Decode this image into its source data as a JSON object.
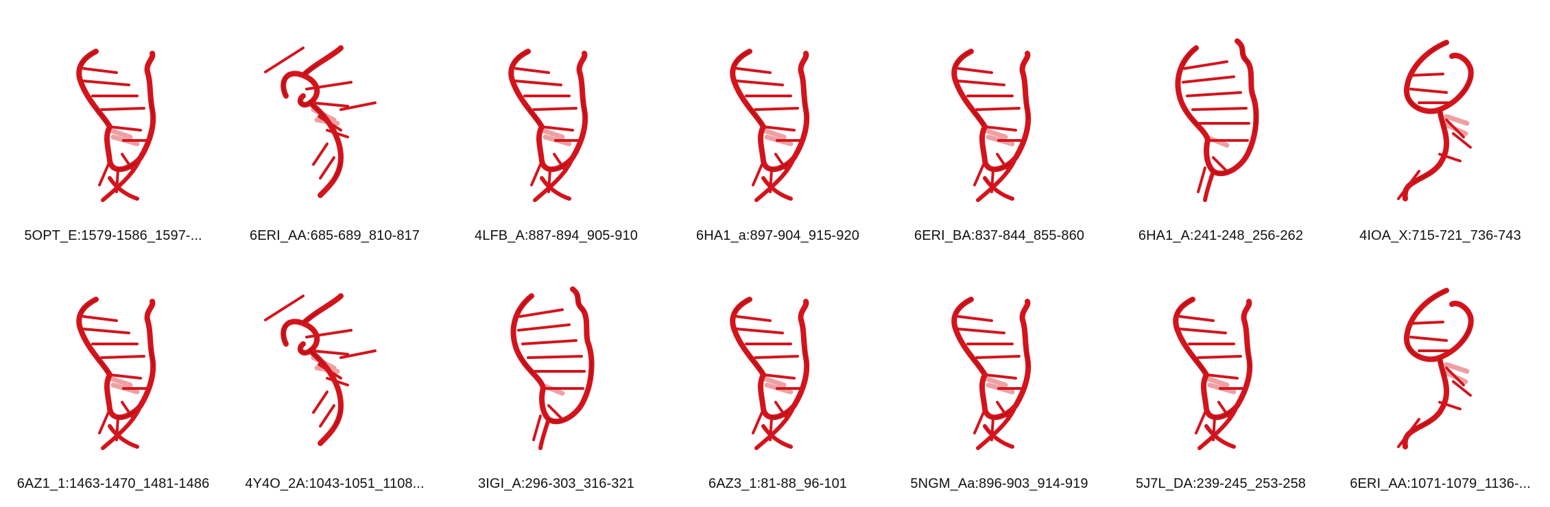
{
  "colors": {
    "strand": "#d3141c",
    "strand_dark": "#8e0c10",
    "strand_light": "#eea0a3",
    "caption_text": "#111111"
  },
  "structures": [
    {
      "label": "5OPT_E:1579-1586_1597-...",
      "variant": "a"
    },
    {
      "label": "6ERI_AA:685-689_810-817",
      "variant": "loop"
    },
    {
      "label": "4LFB_A:887-894_905-910",
      "variant": "a"
    },
    {
      "label": "6HA1_a:897-904_915-920",
      "variant": "a"
    },
    {
      "label": "6ERI_BA:837-844_855-860",
      "variant": "a"
    },
    {
      "label": "6HA1_A:241-248_256-262",
      "variant": "b"
    },
    {
      "label": "4IOA_X:715-721_736-743",
      "variant": "c"
    },
    {
      "label": "6AZ1_1:1463-1470_1481-1486",
      "variant": "a"
    },
    {
      "label": "4Y4O_2A:1043-1051_1108...",
      "variant": "loop"
    },
    {
      "label": "3IGI_A:296-303_316-321",
      "variant": "b"
    },
    {
      "label": "6AZ3_1:81-88_96-101",
      "variant": "a"
    },
    {
      "label": "5NGM_Aa:896-903_914-919",
      "variant": "a"
    },
    {
      "label": "5J7L_DA:239-245_253-258",
      "variant": "a"
    },
    {
      "label": "6ERI_AA:1071-1079_1136-...",
      "variant": "c"
    }
  ]
}
